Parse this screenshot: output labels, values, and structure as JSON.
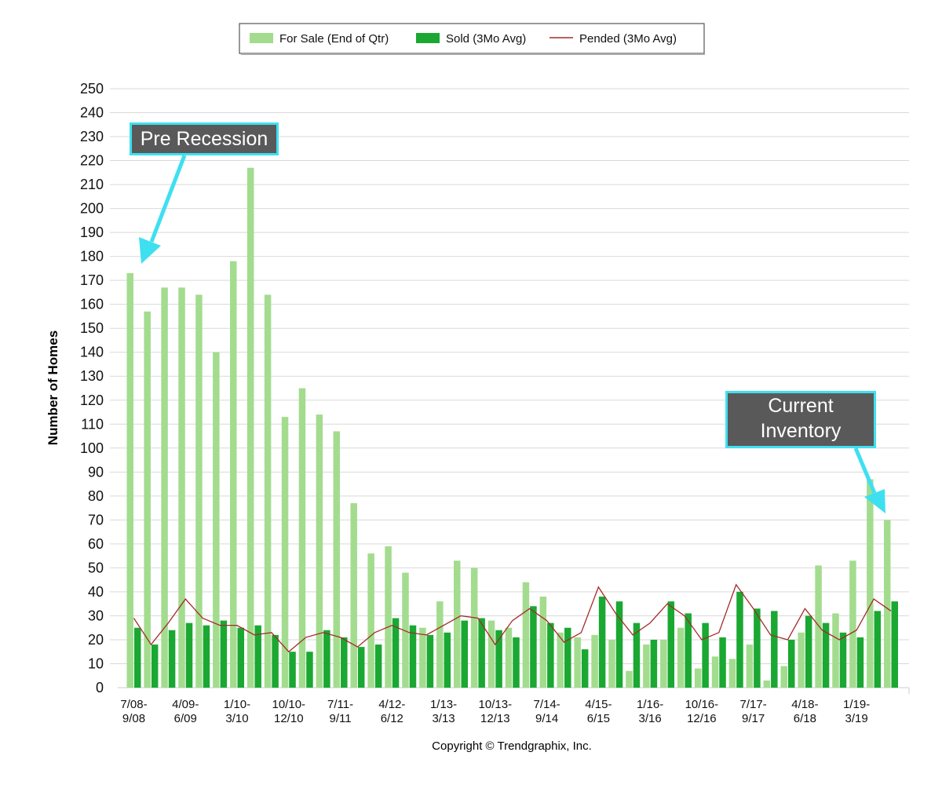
{
  "chart_data": {
    "type": "bar",
    "y_label": "Number of Homes",
    "footer": "Copyright © Trendgraphix, Inc.",
    "annotations": [
      "Pre Recession",
      "Current\nInventory"
    ],
    "categories": [
      "7/08-\n9/08",
      null,
      null,
      "4/09-\n6/09",
      null,
      null,
      "1/10-\n3/10",
      null,
      null,
      "10/10-\n12/10",
      null,
      null,
      "7/11-\n9/11",
      null,
      null,
      "4/12-\n6/12",
      null,
      null,
      "1/13-\n3/13",
      null,
      null,
      "10/13-\n12/13",
      null,
      null,
      "7/14-\n9/14",
      null,
      null,
      "4/15-\n6/15",
      null,
      null,
      "1/16-\n3/16",
      null,
      null,
      "10/16-\n12/16",
      null,
      null,
      "7/17-\n9/17",
      null,
      null,
      "4/18-\n6/18",
      null,
      null,
      "1/19-\n3/19",
      null,
      null
    ],
    "series": [
      {
        "name": "For Sale (End of Qtr)",
        "color": "#a3dc8e",
        "kind": "bar",
        "values": [
          173,
          157,
          167,
          167,
          164,
          140,
          178,
          217,
          164,
          113,
          125,
          114,
          107,
          77,
          56,
          59,
          48,
          25,
          36,
          53,
          50,
          28,
          25,
          44,
          38,
          23,
          21,
          22,
          20,
          7,
          18,
          20,
          25,
          8,
          13,
          12,
          18,
          3,
          9,
          23,
          51,
          31,
          53,
          87,
          70
        ]
      },
      {
        "name": "Sold (3Mo Avg)",
        "color": "#1aa832",
        "kind": "bar",
        "values": [
          25,
          18,
          24,
          27,
          26,
          28,
          25,
          26,
          22,
          15,
          15,
          24,
          21,
          17,
          18,
          29,
          26,
          22,
          23,
          28,
          29,
          24,
          21,
          34,
          27,
          25,
          16,
          38,
          36,
          27,
          20,
          36,
          31,
          27,
          21,
          40,
          33,
          32,
          20,
          30,
          27,
          23,
          21,
          32,
          36
        ]
      },
      {
        "name": "Pended (3Mo Avg)",
        "color": "#a52a2a",
        "kind": "line",
        "values": [
          29,
          18,
          27,
          37,
          29,
          26,
          26,
          22,
          23,
          15,
          21,
          23,
          21,
          17,
          23,
          26,
          23,
          22,
          26,
          30,
          29,
          18,
          28,
          33,
          28,
          19,
          23,
          42,
          31,
          22,
          27,
          35,
          30,
          20,
          23,
          43,
          33,
          22,
          20,
          33,
          24,
          20,
          24,
          37,
          32
        ]
      }
    ],
    "ylim": [
      0,
      250
    ],
    "yticks": [
      0,
      10,
      20,
      30,
      40,
      50,
      60,
      70,
      80,
      90,
      100,
      110,
      120,
      130,
      140,
      150,
      160,
      170,
      180,
      190,
      200,
      210,
      220,
      230,
      240,
      250
    ],
    "grid": true,
    "legend": "top"
  }
}
